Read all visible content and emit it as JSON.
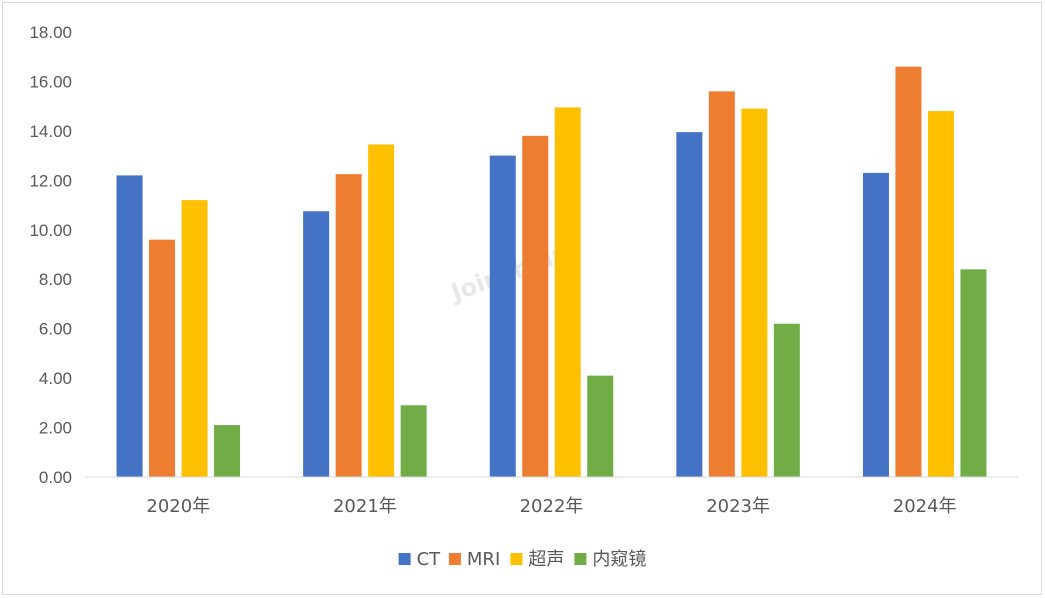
{
  "chart_data": {
    "type": "bar",
    "categories": [
      "2020年",
      "2021年",
      "2022年",
      "2023年",
      "2024年"
    ],
    "series": [
      {
        "name": "CT",
        "color": "#4472C4",
        "values": [
          12.2,
          10.75,
          13.0,
          13.95,
          12.3
        ]
      },
      {
        "name": "MRI",
        "color": "#ED7D31",
        "values": [
          9.6,
          12.25,
          13.8,
          15.6,
          16.6
        ]
      },
      {
        "name": "超声",
        "color": "#FFC000",
        "values": [
          11.2,
          13.45,
          14.95,
          14.9,
          14.8
        ]
      },
      {
        "name": "内窥镜",
        "color": "#70AD47",
        "values": [
          2.1,
          2.9,
          4.1,
          6.2,
          8.4
        ]
      }
    ],
    "ylim": [
      0,
      18
    ],
    "yticks": [
      "0.00",
      "2.00",
      "4.00",
      "6.00",
      "8.00",
      "10.00",
      "12.00",
      "14.00",
      "16.00",
      "18.00"
    ],
    "ytick_step": 2,
    "grid": false,
    "legend_position": "bottom",
    "title": "",
    "xlabel": "",
    "ylabel": ""
  },
  "watermark": "Joinchain"
}
